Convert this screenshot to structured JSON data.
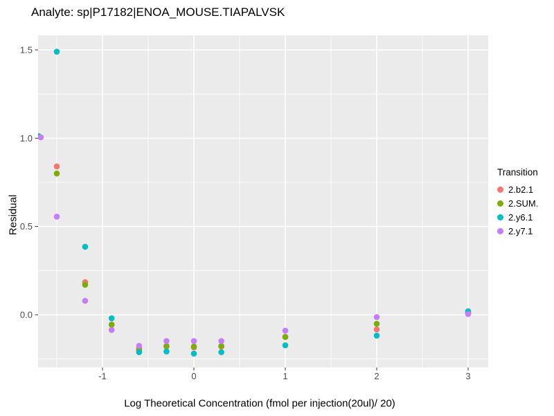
{
  "chart_data": {
    "type": "scatter",
    "title": "Analyte: sp|P17182|ENOA_MOUSE.TIAPALVSK",
    "xlabel": "Log Theoretical Concentration (fmol per injection(20ul)/ 20)",
    "ylabel": "Residual",
    "legend_title": "Transition",
    "legend_position": "right",
    "grid": true,
    "panel_color": "#EBEBEB",
    "grid_color": "#FFFFFF",
    "tick_label_color": "#4D4D4D",
    "tick_mark_color": "#333333",
    "x_ticks": [
      -1,
      0,
      1,
      2,
      3
    ],
    "x_tick_labels": [
      "-1",
      "0",
      "1",
      "2",
      "3"
    ],
    "y_ticks": [
      0,
      0.5,
      1,
      1.5
    ],
    "y_tick_labels": [
      "0.0",
      "0.5",
      "1.0",
      "1.5"
    ],
    "xlim": [
      -1.7,
      3.22
    ],
    "ylim": [
      -0.3,
      1.582
    ],
    "series": [
      {
        "name": "2.b2.1",
        "color": "#F8766D",
        "points": [
          [
            -1.5,
            0.84
          ],
          [
            -1.19,
            0.185
          ],
          [
            -0.9,
            -0.055
          ],
          [
            -0.6,
            -0.19
          ],
          [
            -0.3,
            -0.18
          ],
          [
            0,
            -0.185
          ],
          [
            0.3,
            -0.18
          ],
          [
            1,
            -0.125
          ],
          [
            2,
            -0.083
          ],
          [
            3,
            0.008
          ]
        ]
      },
      {
        "name": "2.SUM.",
        "color": "#7CAE00",
        "points": [
          [
            -1.5,
            0.8
          ],
          [
            -1.19,
            0.17
          ],
          [
            -0.9,
            -0.057
          ],
          [
            -0.6,
            -0.2
          ],
          [
            -0.3,
            -0.177
          ],
          [
            0,
            -0.18
          ],
          [
            0.3,
            -0.177
          ],
          [
            1,
            -0.126
          ],
          [
            2,
            -0.051
          ],
          [
            3,
            0.01
          ]
        ]
      },
      {
        "name": "2.y6.1",
        "color": "#00BFC4",
        "points": [
          [
            -1.7,
            1.012
          ],
          [
            -1.5,
            1.49
          ],
          [
            -1.19,
            0.385
          ],
          [
            -0.9,
            -0.02
          ],
          [
            -0.6,
            -0.212
          ],
          [
            -0.3,
            -0.208
          ],
          [
            0,
            -0.22
          ],
          [
            0.3,
            -0.212
          ],
          [
            1,
            -0.173
          ],
          [
            2,
            -0.118
          ],
          [
            3,
            0.02
          ]
        ]
      },
      {
        "name": "2.y7.1",
        "color": "#C77CFF",
        "points": [
          [
            -1.675,
            1.005
          ],
          [
            -1.5,
            0.556
          ],
          [
            -1.19,
            0.079
          ],
          [
            -0.9,
            -0.086
          ],
          [
            -0.6,
            -0.176
          ],
          [
            -0.3,
            -0.149
          ],
          [
            0,
            -0.149
          ],
          [
            0.3,
            -0.149
          ],
          [
            1,
            -0.09
          ],
          [
            2,
            -0.013
          ],
          [
            3,
            0.004
          ]
        ]
      }
    ]
  }
}
